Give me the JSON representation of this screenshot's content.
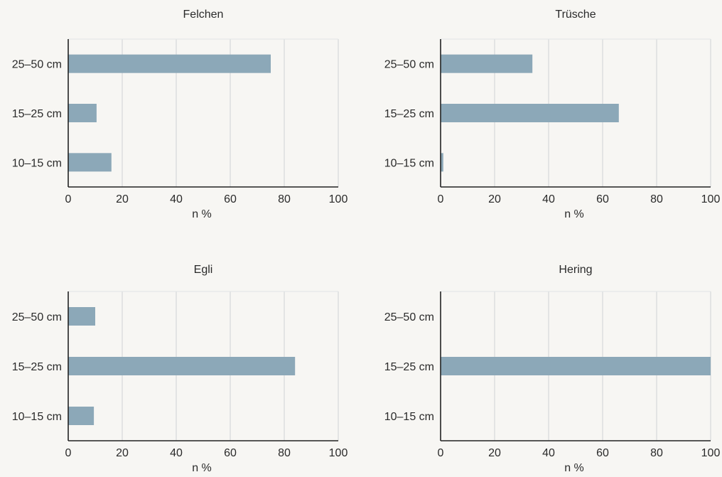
{
  "chart_data": [
    {
      "type": "bar",
      "orientation": "horizontal",
      "title": "Felchen",
      "categories": [
        "25–50 cm",
        "15–25 cm",
        "10–15 cm"
      ],
      "values": [
        75,
        10.5,
        16
      ],
      "xlabel": "n %",
      "xlim": [
        0,
        100
      ],
      "xticks": [
        "0",
        "20",
        "40",
        "60",
        "80",
        "100"
      ],
      "grid": true,
      "bar_color": "#8ca8b8"
    },
    {
      "type": "bar",
      "orientation": "horizontal",
      "title": "Trüsche",
      "categories": [
        "25–50 cm",
        "15–25 cm",
        "10–15 cm"
      ],
      "values": [
        34,
        66,
        1
      ],
      "xlabel": "n %",
      "xlim": [
        0,
        100
      ],
      "xticks": [
        "0",
        "20",
        "40",
        "60",
        "80",
        "100"
      ],
      "grid": true,
      "bar_color": "#8ca8b8"
    },
    {
      "type": "bar",
      "orientation": "horizontal",
      "title": "Egli",
      "categories": [
        "25–50 cm",
        "15–25 cm",
        "10–15 cm"
      ],
      "values": [
        10,
        84,
        9.5
      ],
      "xlabel": "n %",
      "xlim": [
        0,
        100
      ],
      "xticks": [
        "0",
        "20",
        "40",
        "60",
        "80",
        "100"
      ],
      "grid": true,
      "bar_color": "#8ca8b8"
    },
    {
      "type": "bar",
      "orientation": "horizontal",
      "title": "Hering",
      "categories": [
        "25–50 cm",
        "15–25 cm",
        "10–15 cm"
      ],
      "values": [
        0,
        100,
        0
      ],
      "xlabel": "n %",
      "xlim": [
        0,
        100
      ],
      "xticks": [
        "0",
        "20",
        "40",
        "60",
        "80",
        "100"
      ],
      "grid": true,
      "bar_color": "#8ca8b8"
    }
  ]
}
